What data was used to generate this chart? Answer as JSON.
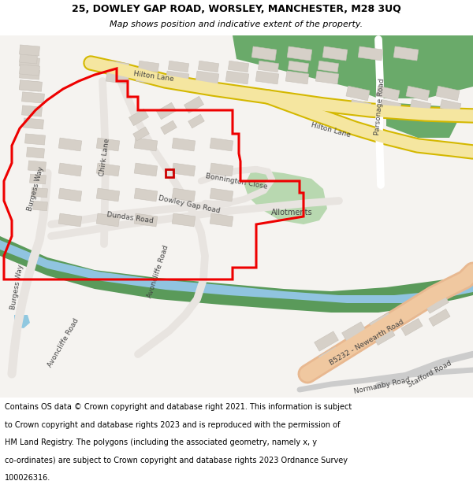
{
  "title_line1": "25, DOWLEY GAP ROAD, WORSLEY, MANCHESTER, M28 3UQ",
  "title_line2": "Map shows position and indicative extent of the property.",
  "fig_width": 6.0,
  "fig_height": 6.25,
  "dpi": 100,
  "map_bg": "#f5f3f0",
  "building_color": "#d6d0c8",
  "building_outline": "#c8c2ba",
  "road_bg": "#ffffff",
  "road_gray": "#e8e4e0",
  "yellow_road_fill": "#f5e6a0",
  "yellow_road_edge": "#d4b800",
  "orange_road": "#f0c8a0",
  "green_dark": "#6aaa6a",
  "green_light": "#c8e8c0",
  "green_allot": "#b8d8b0",
  "blue_canal": "#90c4e0",
  "green_canal": "#5a9a5a",
  "red_poly": "#ee0000",
  "title_fs": 9,
  "subtitle_fs": 8,
  "copyright_fs": 7,
  "label_fs": 6.5,
  "copyright_lines": [
    "Contains OS data © Crown copyright and database right 2021. This information is subject",
    "to Crown copyright and database rights 2023 and is reproduced with the permission of",
    "HM Land Registry. The polygons (including the associated geometry, namely x, y",
    "co-ordinates) are subject to Crown copyright and database rights 2023 Ordnance Survey",
    "100026316."
  ]
}
